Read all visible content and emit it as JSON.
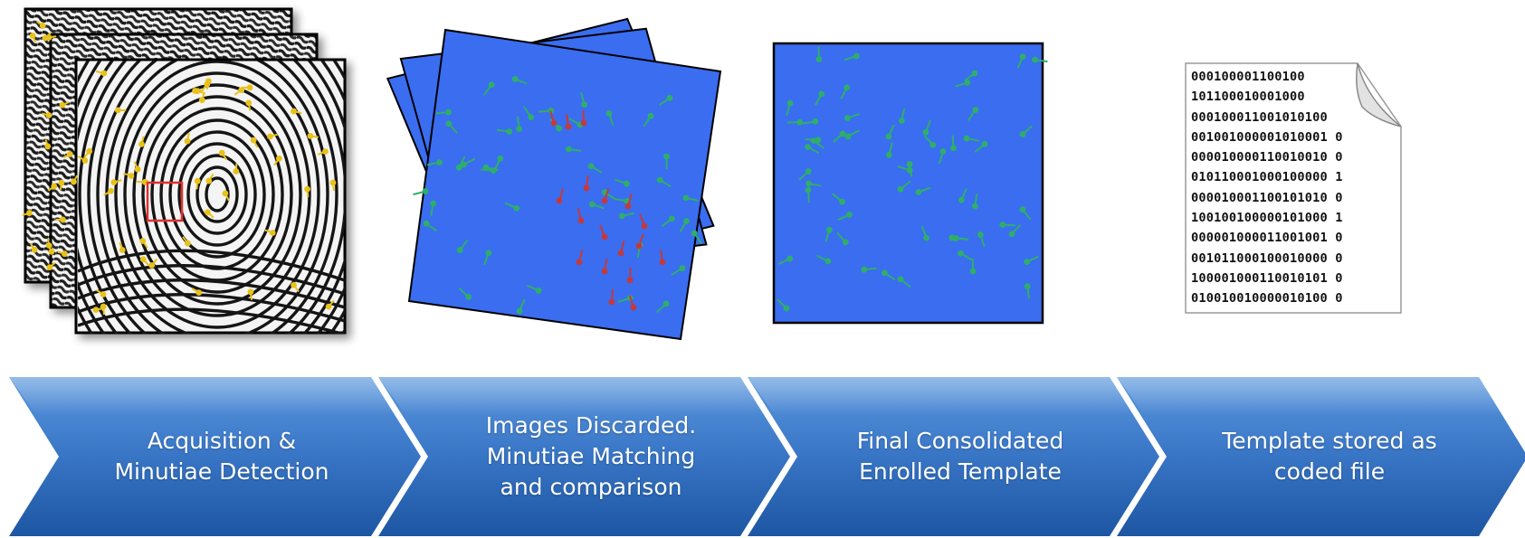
{
  "colors": {
    "chevron_top": "#4a88d4",
    "chevron_bottom": "#1f5aa8",
    "panel_blue": "#3a6df0",
    "minutia_green": "#2fae6a",
    "minutia_red": "#c43a3a",
    "minutia_yellow": "#e8c21a",
    "match_box": "#e03030"
  },
  "steps": [
    {
      "id": "acquisition",
      "lines": [
        "Acquisition &",
        "Minutiae Detection"
      ]
    },
    {
      "id": "discarded",
      "lines": [
        "Images Discarded.",
        "Minutiae Matching",
        "and comparison"
      ]
    },
    {
      "id": "final",
      "lines": [
        "Final Consolidated",
        "Enrolled Template"
      ]
    },
    {
      "id": "stored",
      "lines": [
        "Template stored as",
        "coded file"
      ]
    }
  ],
  "coded_file": {
    "lines": [
      "000100001100100",
      "101100010001000",
      "000100011001010100",
      "001001000001010001 0",
      "000010000110010010 0",
      "010110001000100000 1",
      "000010001100101010 0",
      "100100100000101000 1",
      "000001000011001001 0",
      "001011000100010000 0",
      "100001000110010101 0",
      "010010010000010100 0"
    ]
  },
  "icons": [
    "fingerprint-image-icon",
    "minutiae-map-icon",
    "template-map-icon",
    "coded-file-icon"
  ]
}
